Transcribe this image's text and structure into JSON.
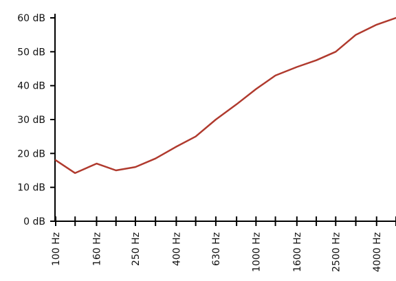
{
  "chart_data": {
    "type": "line",
    "title": "",
    "xlabel": "",
    "ylabel": "",
    "x_scale": "log",
    "ylim": [
      0,
      60
    ],
    "grid": false,
    "line_color": "#b03a2e",
    "axis_color": "#000000",
    "y_ticks": [
      {
        "value": 0,
        "label": "0 dB"
      },
      {
        "value": 10,
        "label": "10 dB"
      },
      {
        "value": 20,
        "label": "20 dB"
      },
      {
        "value": 30,
        "label": "30 dB"
      },
      {
        "value": 40,
        "label": "40 dB"
      },
      {
        "value": 50,
        "label": "50 dB"
      },
      {
        "value": 60,
        "label": "60 dB"
      }
    ],
    "x_tick_values": [
      100,
      125,
      160,
      200,
      250,
      315,
      400,
      500,
      630,
      800,
      1000,
      1250,
      1600,
      2000,
      2500,
      3150,
      4000,
      5000
    ],
    "x_tick_labels": [
      {
        "value": 100,
        "label": "100 Hz"
      },
      {
        "value": 160,
        "label": "160 Hz"
      },
      {
        "value": 250,
        "label": "250 Hz"
      },
      {
        "value": 400,
        "label": "400 Hz"
      },
      {
        "value": 630,
        "label": "630 Hz"
      },
      {
        "value": 1000,
        "label": "1000 Hz"
      },
      {
        "value": 1600,
        "label": "1600 Hz"
      },
      {
        "value": 2500,
        "label": "2500 Hz"
      },
      {
        "value": 4000,
        "label": "4000 Hz"
      }
    ],
    "series": [
      {
        "x": [
          100,
          125,
          160,
          200,
          250,
          315,
          400,
          500,
          630,
          800,
          1000,
          1250,
          1600,
          2000,
          2500,
          3150,
          4000,
          5000
        ],
        "y": [
          18,
          14.2,
          17,
          15,
          16,
          18.5,
          22,
          25,
          30,
          34.5,
          39,
          43,
          45.5,
          47.5,
          50,
          55,
          58,
          60
        ]
      }
    ]
  }
}
